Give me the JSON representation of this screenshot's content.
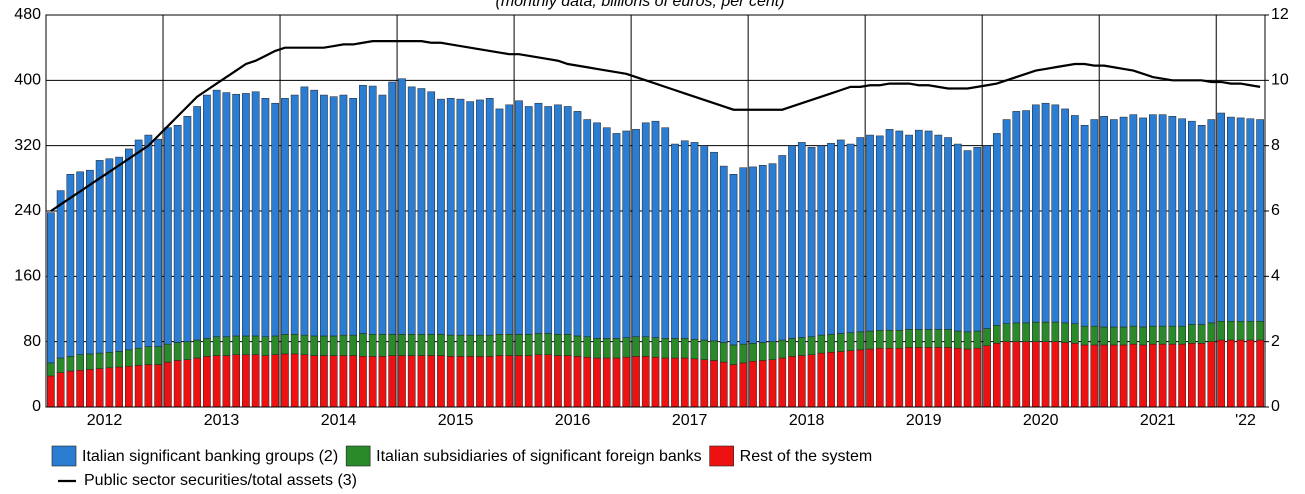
{
  "chart_data": {
    "type": "stacked_bar_line",
    "subtitle": "(monthly data; billions of euros; per cent)",
    "categories": [
      null,
      null,
      null,
      null,
      null,
      "2012",
      null,
      null,
      null,
      null,
      null,
      null,
      null,
      null,
      null,
      null,
      null,
      "2013",
      null,
      null,
      null,
      null,
      null,
      null,
      null,
      null,
      null,
      null,
      null,
      "2014",
      null,
      null,
      null,
      null,
      null,
      null,
      null,
      null,
      null,
      null,
      null,
      "2015",
      null,
      null,
      null,
      null,
      null,
      null,
      null,
      null,
      null,
      null,
      null,
      "2016",
      null,
      null,
      null,
      null,
      null,
      null,
      null,
      null,
      null,
      null,
      null,
      "2017",
      null,
      null,
      null,
      null,
      null,
      null,
      null,
      null,
      null,
      null,
      null,
      "2018",
      null,
      null,
      null,
      null,
      null,
      null,
      null,
      null,
      null,
      null,
      null,
      "2019",
      null,
      null,
      null,
      null,
      null,
      null,
      null,
      null,
      null,
      null,
      null,
      "2020",
      null,
      null,
      null,
      null,
      null,
      null,
      null,
      null,
      null,
      null,
      null,
      "2021",
      null,
      null,
      null,
      null,
      null,
      null,
      null,
      null,
      "'22",
      null,
      null
    ],
    "series": [
      {
        "name": "Rest of the system",
        "color": "#ee1111",
        "values": [
          38,
          42,
          44,
          45,
          46,
          47,
          48,
          49,
          50,
          51,
          52,
          52,
          55,
          57,
          58,
          60,
          62,
          63,
          63,
          64,
          64,
          64,
          63,
          64,
          65,
          65,
          64,
          63,
          63,
          63,
          63,
          63,
          62,
          62,
          62,
          63,
          63,
          63,
          63,
          63,
          63,
          62,
          62,
          62,
          62,
          62,
          63,
          63,
          63,
          63,
          64,
          64,
          63,
          63,
          62,
          61,
          60,
          60,
          60,
          61,
          62,
          62,
          61,
          60,
          60,
          60,
          59,
          58,
          57,
          55,
          52,
          54,
          56,
          57,
          58,
          60,
          62,
          63,
          64,
          66,
          67,
          68,
          69,
          70,
          71,
          72,
          72,
          72,
          73,
          73,
          73,
          73,
          73,
          72,
          71,
          72,
          75,
          78,
          80,
          80,
          80,
          80,
          80,
          80,
          79,
          78,
          76,
          76,
          76,
          76,
          76,
          77,
          76,
          77,
          77,
          77,
          77,
          78,
          78,
          80,
          82,
          82,
          82,
          82,
          82
        ]
      },
      {
        "name": "Italian subsidiaries of significant foreign banks",
        "color": "#2a8a2a",
        "values": [
          16,
          18,
          18,
          19,
          19,
          19,
          19,
          19,
          20,
          21,
          22,
          22,
          22,
          22,
          22,
          22,
          22,
          23,
          23,
          23,
          23,
          23,
          23,
          23,
          24,
          24,
          24,
          24,
          24,
          24,
          25,
          25,
          28,
          27,
          27,
          26,
          26,
          26,
          26,
          26,
          26,
          26,
          26,
          26,
          26,
          26,
          26,
          26,
          26,
          26,
          26,
          26,
          26,
          26,
          25,
          25,
          24,
          24,
          24,
          24,
          24,
          24,
          24,
          24,
          24,
          24,
          24,
          24,
          24,
          24,
          24,
          23,
          22,
          22,
          22,
          22,
          22,
          22,
          22,
          22,
          22,
          22,
          22,
          22,
          22,
          22,
          22,
          22,
          22,
          22,
          22,
          22,
          22,
          21,
          21,
          21,
          21,
          22,
          22,
          23,
          23,
          24,
          24,
          24,
          24,
          24,
          23,
          23,
          22,
          22,
          22,
          22,
          22,
          22,
          22,
          22,
          22,
          23,
          23,
          23,
          23,
          23,
          23,
          23,
          23
        ]
      },
      {
        "name": "Italian significant banking groups (2)",
        "color": "#2b7cd3",
        "values": [
          184,
          205,
          223,
          224,
          225,
          236,
          237,
          238,
          246,
          255,
          259,
          254,
          265,
          266,
          276,
          286,
          298,
          302,
          299,
          296,
          297,
          299,
          292,
          285,
          289,
          293,
          304,
          301,
          295,
          293,
          294,
          290,
          304,
          304,
          293,
          309,
          313,
          303,
          301,
          297,
          288,
          290,
          289,
          286,
          288,
          290,
          276,
          281,
          286,
          279,
          282,
          278,
          281,
          279,
          275,
          266,
          264,
          258,
          251,
          253,
          254,
          262,
          265,
          258,
          238,
          242,
          241,
          238,
          231,
          216,
          209,
          216,
          216,
          217,
          218,
          226,
          236,
          239,
          232,
          232,
          234,
          237,
          231,
          238,
          240,
          238,
          246,
          244,
          238,
          244,
          243,
          238,
          235,
          229,
          222,
          225,
          224,
          235,
          250,
          259,
          260,
          266,
          268,
          266,
          262,
          255,
          246,
          253,
          258,
          254,
          257,
          259,
          256,
          259,
          259,
          257,
          254,
          249,
          244,
          249,
          255,
          250,
          249,
          248,
          247
        ]
      },
      {
        "name": "Public sector securities/total assets (3)",
        "color": "#000000",
        "axis": "y2",
        "values": [
          6.0,
          6.2,
          6.4,
          6.6,
          6.8,
          7.0,
          7.2,
          7.4,
          7.6,
          7.8,
          8.0,
          8.3,
          8.6,
          8.9,
          9.2,
          9.5,
          9.7,
          9.9,
          10.1,
          10.3,
          10.5,
          10.6,
          10.75,
          10.9,
          11.0,
          11.0,
          11.0,
          11.0,
          11.0,
          11.05,
          11.1,
          11.1,
          11.15,
          11.2,
          11.2,
          11.2,
          11.2,
          11.2,
          11.2,
          11.15,
          11.15,
          11.1,
          11.05,
          11.0,
          10.95,
          10.9,
          10.85,
          10.8,
          10.8,
          10.75,
          10.7,
          10.65,
          10.6,
          10.5,
          10.45,
          10.4,
          10.35,
          10.3,
          10.25,
          10.2,
          10.1,
          10.0,
          9.9,
          9.8,
          9.7,
          9.6,
          9.5,
          9.4,
          9.3,
          9.2,
          9.1,
          9.1,
          9.1,
          9.1,
          9.1,
          9.1,
          9.2,
          9.3,
          9.4,
          9.5,
          9.6,
          9.7,
          9.8,
          9.8,
          9.85,
          9.85,
          9.9,
          9.9,
          9.9,
          9.85,
          9.85,
          9.8,
          9.75,
          9.75,
          9.75,
          9.8,
          9.85,
          9.9,
          10.0,
          10.1,
          10.2,
          10.3,
          10.35,
          10.4,
          10.45,
          10.5,
          10.5,
          10.45,
          10.45,
          10.4,
          10.35,
          10.3,
          10.2,
          10.1,
          10.05,
          10.0,
          10.0,
          10.0,
          10.0,
          9.95,
          9.95,
          9.9,
          9.9,
          9.85,
          9.8
        ]
      }
    ],
    "ylim": [
      0,
      480
    ],
    "yticks": [
      0,
      80,
      160,
      240,
      320,
      400,
      480
    ],
    "y2lim": [
      0,
      12
    ],
    "y2ticks": [
      0,
      2,
      4,
      6,
      8,
      10,
      12
    ],
    "grid": true
  }
}
